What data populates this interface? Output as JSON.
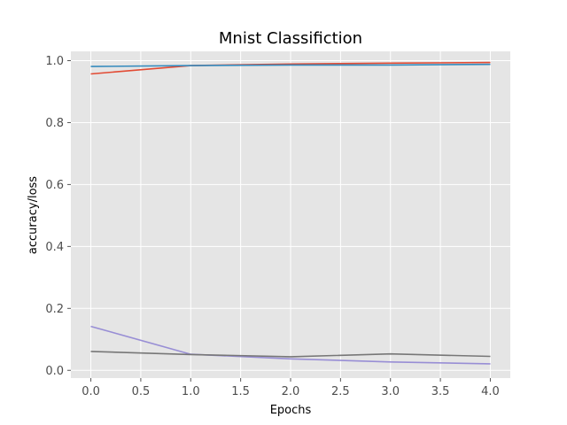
{
  "chart_data": {
    "type": "line",
    "title": "Mnist Classifiction",
    "xlabel": "Epochs",
    "ylabel": "accuracy/loss",
    "xlim": [
      -0.2,
      4.2
    ],
    "ylim": [
      -0.025,
      1.03
    ],
    "xticks": [
      "0.0",
      "0.5",
      "1.0",
      "1.5",
      "2.0",
      "2.5",
      "3.0",
      "3.5",
      "4.0"
    ],
    "yticks": [
      "0.0",
      "0.2",
      "0.4",
      "0.6",
      "0.8",
      "1.0"
    ],
    "grid": true,
    "style": "ggplot",
    "x": [
      0,
      1,
      2,
      3,
      4
    ],
    "series": [
      {
        "color": "#E24A33",
        "values": [
          0.957,
          0.984,
          0.989,
          0.992,
          0.994
        ]
      },
      {
        "color": "#348ABD",
        "values": [
          0.981,
          0.984,
          0.986,
          0.986,
          0.988
        ]
      },
      {
        "color": "#988ED5",
        "values": [
          0.142,
          0.052,
          0.037,
          0.027,
          0.021
        ]
      },
      {
        "color": "#777777",
        "values": [
          0.061,
          0.051,
          0.044,
          0.053,
          0.045
        ]
      }
    ]
  }
}
